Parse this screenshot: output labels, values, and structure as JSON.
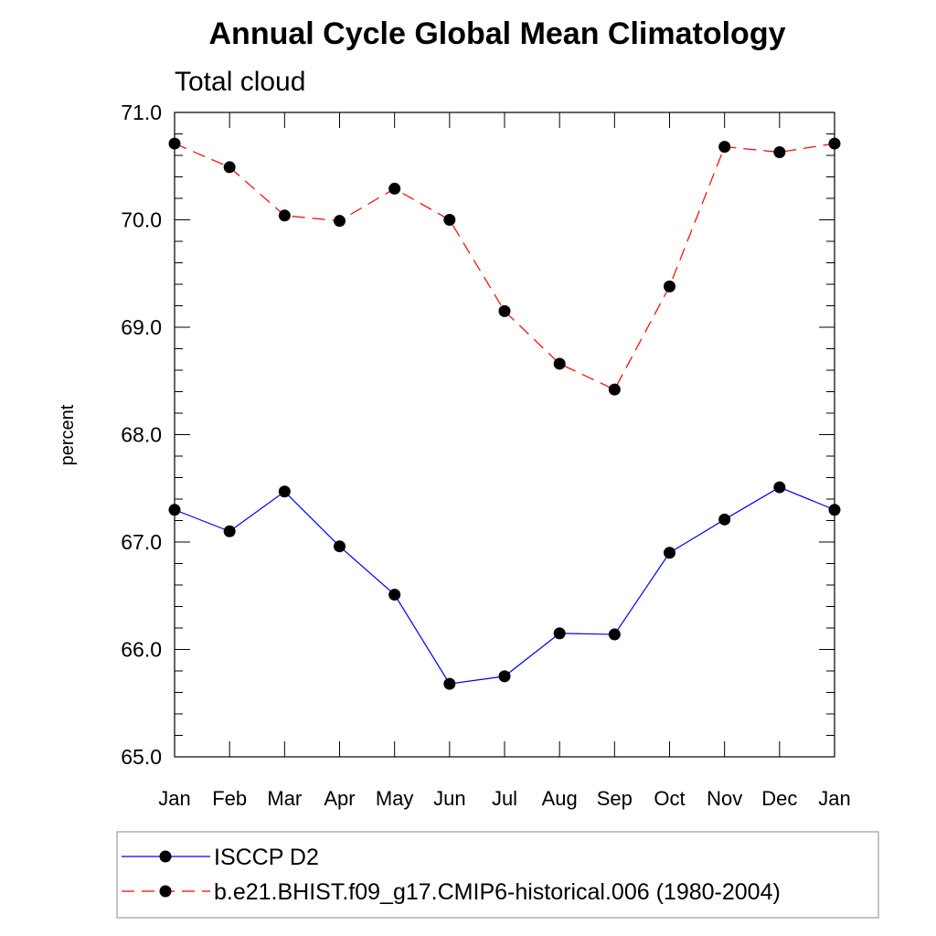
{
  "chart_data": {
    "type": "line",
    "title": "Annual Cycle Global Mean Climatology",
    "subtitle": "Total cloud",
    "xlabel": "",
    "ylabel": "percent",
    "categories": [
      "Jan",
      "Feb",
      "Mar",
      "Apr",
      "May",
      "Jun",
      "Jul",
      "Aug",
      "Sep",
      "Oct",
      "Nov",
      "Dec",
      "Jan"
    ],
    "ylim": [
      65.0,
      71.0
    ],
    "yticks": [
      "65.0",
      "66.0",
      "67.0",
      "68.0",
      "69.0",
      "70.0",
      "71.0"
    ],
    "grid": false,
    "legend_position": "bottom",
    "series": [
      {
        "name": "ISCCP D2",
        "color": "#0000ff",
        "dash": "solid",
        "marker": "dot",
        "values": [
          67.3,
          67.1,
          67.47,
          66.96,
          66.51,
          65.68,
          65.75,
          66.15,
          66.14,
          66.9,
          67.21,
          67.51,
          67.3
        ]
      },
      {
        "name": "b.e21.BHIST.f09_g17.CMIP6-historical.006 (1980-2004)",
        "color": "#ff0000",
        "dash": "dashed",
        "marker": "dot",
        "values": [
          70.71,
          70.49,
          70.04,
          69.99,
          70.29,
          70.0,
          69.15,
          68.66,
          68.42,
          69.38,
          70.68,
          70.63,
          70.71
        ]
      }
    ]
  }
}
